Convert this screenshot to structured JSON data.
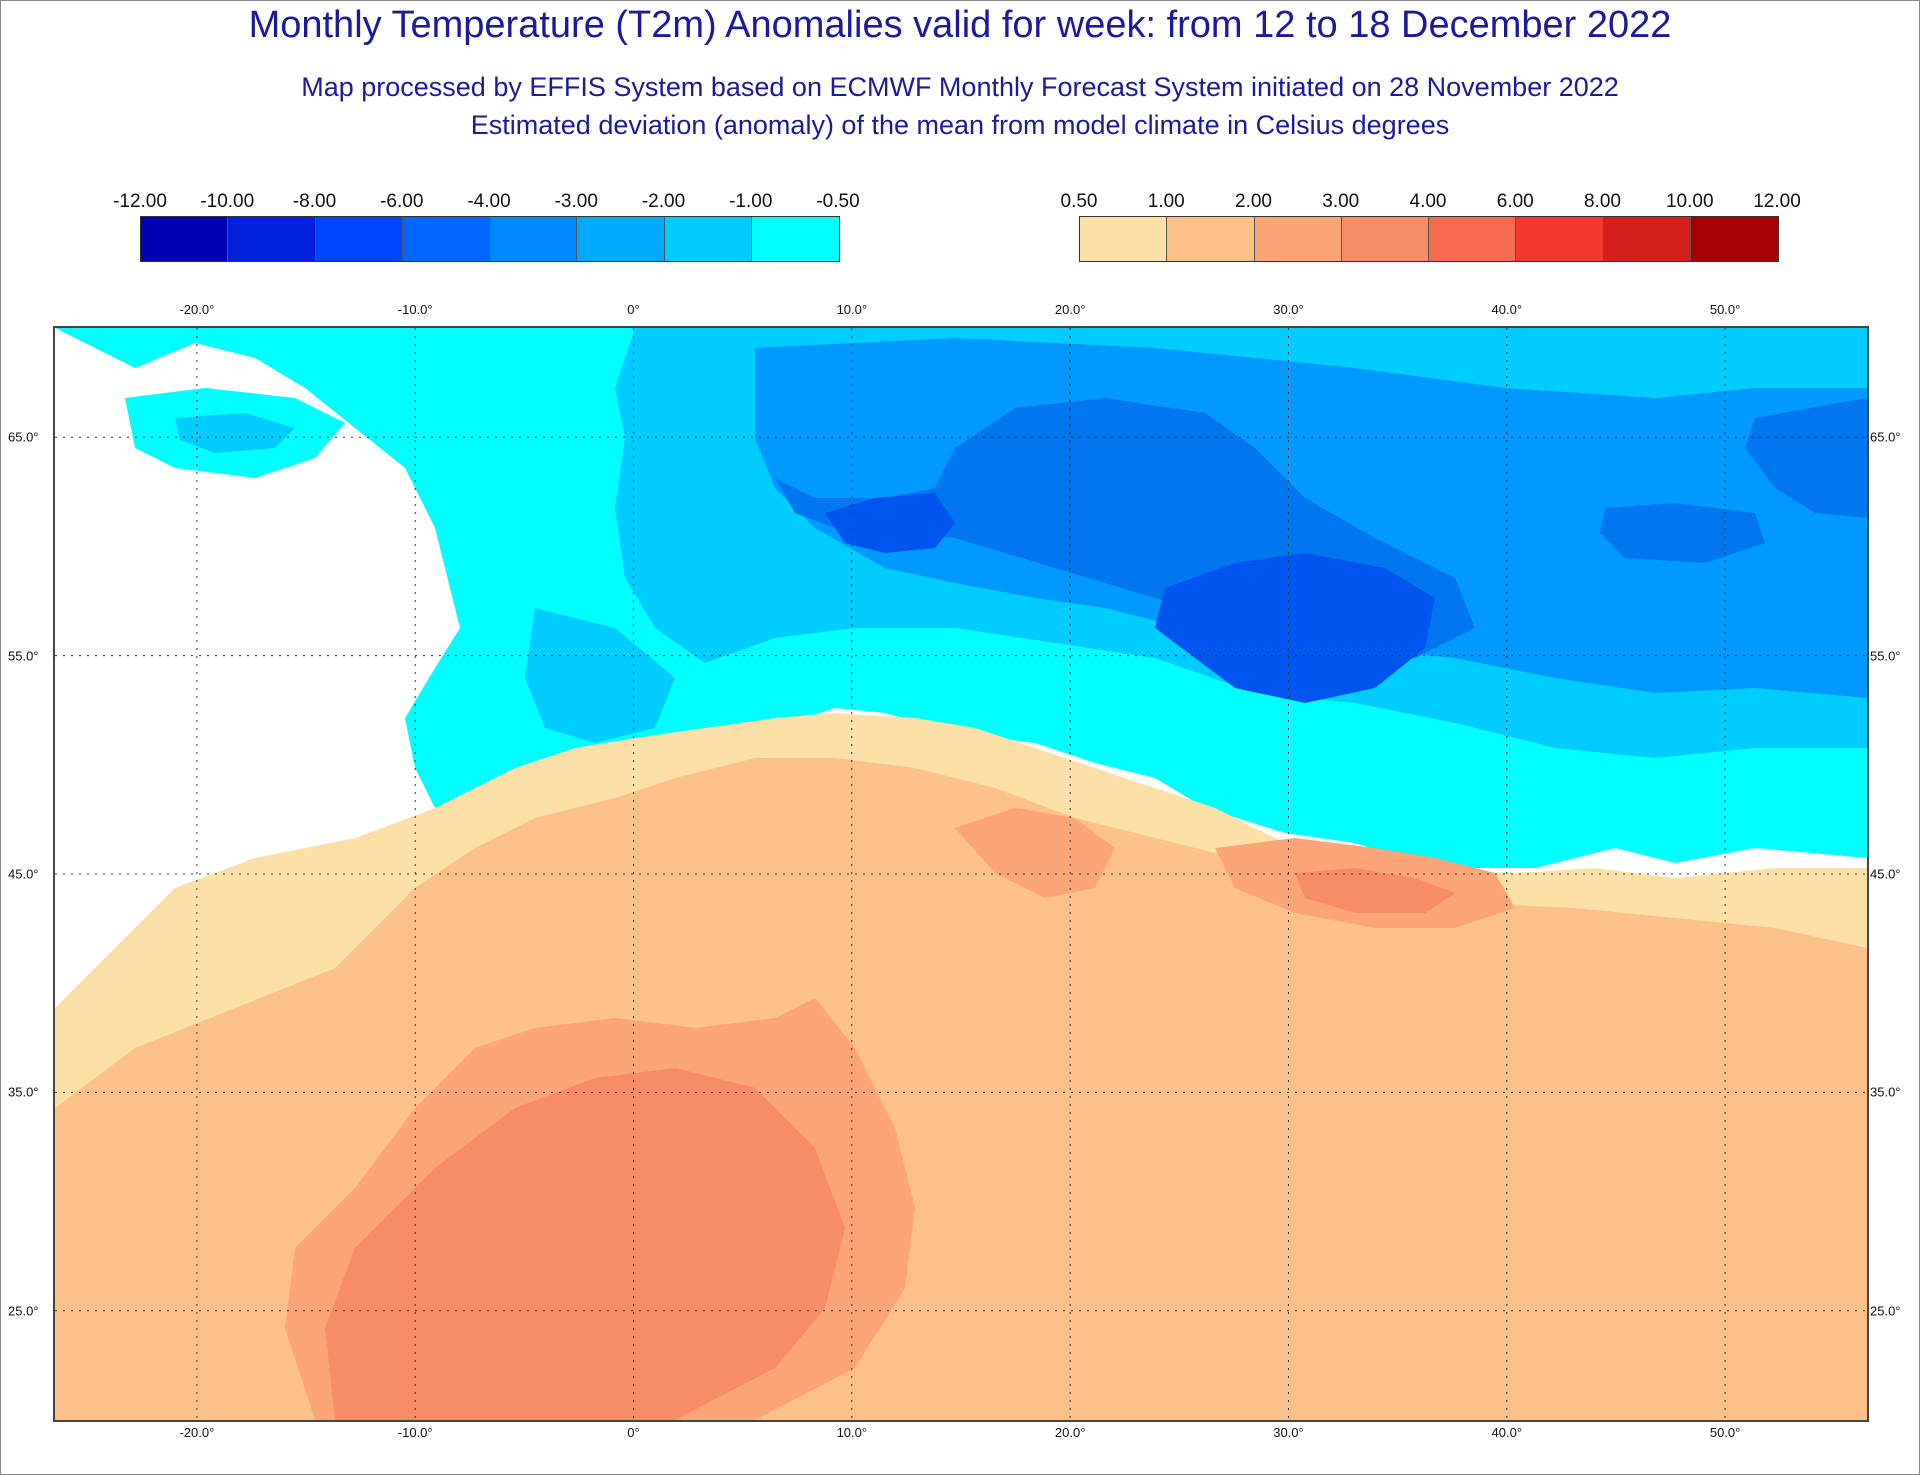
{
  "header": {
    "title": "Monthly Temperature (T2m) Anomalies valid for week: from 12 to 18 December 2022",
    "subtitle1": "Map processed by EFFIS System based on ECMWF Monthly Forecast System initiated on 28 November 2022",
    "subtitle2": "Estimated deviation (anomaly) of the mean from model climate in Celsius degrees"
  },
  "legend": {
    "negative": {
      "ticks": [
        "-12.00",
        "-10.00",
        "-8.00",
        "-6.00",
        "-4.00",
        "-3.00",
        "-2.00",
        "-1.00",
        "-0.50"
      ],
      "colors": [
        "#0000b3",
        "#0022dd",
        "#0044ff",
        "#0066ff",
        "#0088ff",
        "#00aaff",
        "#00ccff",
        "#00ffff"
      ]
    },
    "positive": {
      "ticks": [
        "0.50",
        "1.00",
        "2.00",
        "3.00",
        "4.00",
        "6.00",
        "8.00",
        "10.00",
        "12.00"
      ],
      "colors": [
        "#fde0a8",
        "#fcc08a",
        "#fba578",
        "#f98c68",
        "#f76a52",
        "#f23a32",
        "#d51e1e",
        "#a60000"
      ]
    }
  },
  "map": {
    "lon_labels": [
      "-20.0°",
      "-10.0°",
      "0°",
      "10.0°",
      "20.0°",
      "30.0°",
      "40.0°",
      "50.0°"
    ],
    "lat_labels": [
      "65.0°",
      "55.0°",
      "45.0°",
      "35.0°",
      "25.0°"
    ],
    "lon_range": [
      -26.5,
      56.5
    ],
    "lat_range": [
      20.0,
      70.0
    ],
    "lon_values": [
      -20,
      -10,
      0,
      10,
      20,
      30,
      40,
      50
    ],
    "lat_values": [
      65,
      55,
      45,
      35,
      25
    ]
  }
}
